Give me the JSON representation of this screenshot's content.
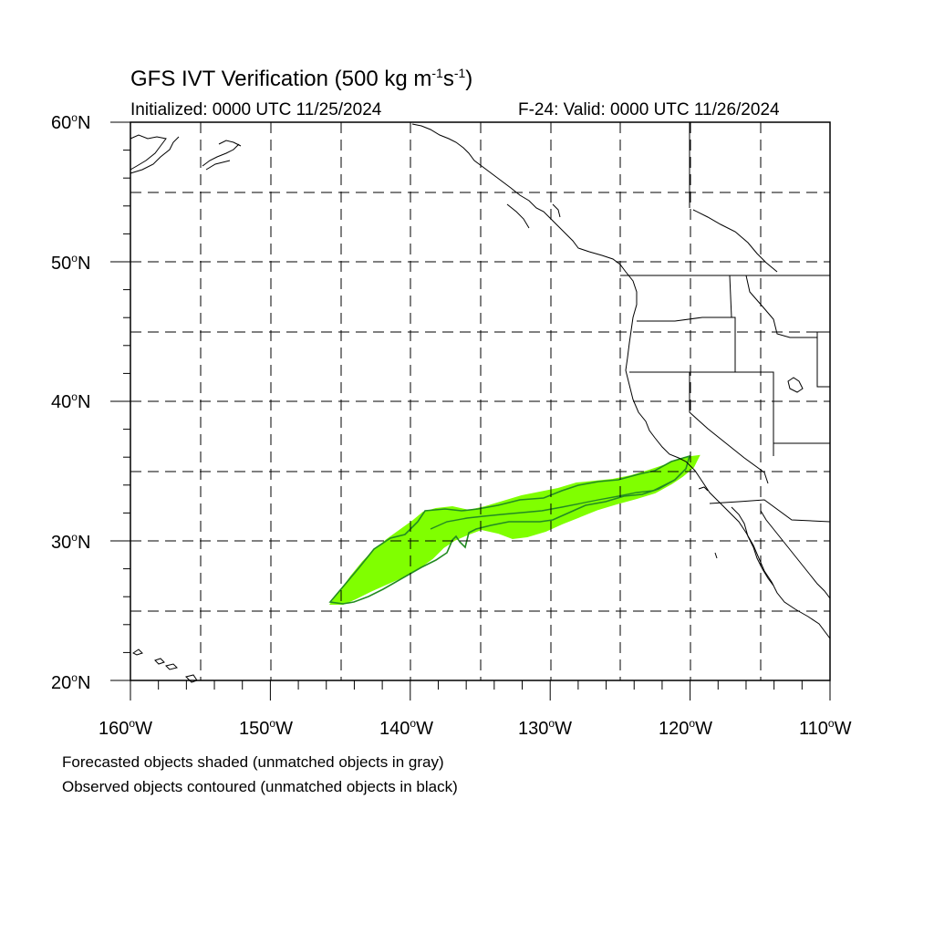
{
  "map": {
    "title_main": "GFS IVT Verification (500 kg m",
    "title_exp1": "-1",
    "title_mid": "s",
    "title_exp2": "-1",
    "title_end": ")",
    "initialized": "Initialized: 0000 UTC 11/25/2024",
    "valid": "F-24: Valid: 0000 UTC 11/26/2024",
    "lat_labels": [
      {
        "num": "60",
        "hemi": "N"
      },
      {
        "num": "50",
        "hemi": "N"
      },
      {
        "num": "40",
        "hemi": "N"
      },
      {
        "num": "30",
        "hemi": "N"
      },
      {
        "num": "20",
        "hemi": "N"
      }
    ],
    "lon_labels": [
      {
        "num": "160",
        "hemi": "W"
      },
      {
        "num": "150",
        "hemi": "W"
      },
      {
        "num": "140",
        "hemi": "W"
      },
      {
        "num": "130",
        "hemi": "W"
      },
      {
        "num": "120",
        "hemi": "W"
      },
      {
        "num": "110",
        "hemi": "W"
      }
    ],
    "degree_symbol": "o",
    "caption_line1": "Forecasted objects shaded (unmatched objects in gray)",
    "caption_line2": "Observed objects contoured (unmatched objects in black)",
    "extent": {
      "lon_min": -160,
      "lon_max": -110,
      "lat_min": 20,
      "lat_max": 60
    },
    "colors": {
      "forecast_fill": "#80ff00",
      "observed_contour": "#228b22",
      "coastline": "#000000",
      "grid": "#000000"
    }
  }
}
